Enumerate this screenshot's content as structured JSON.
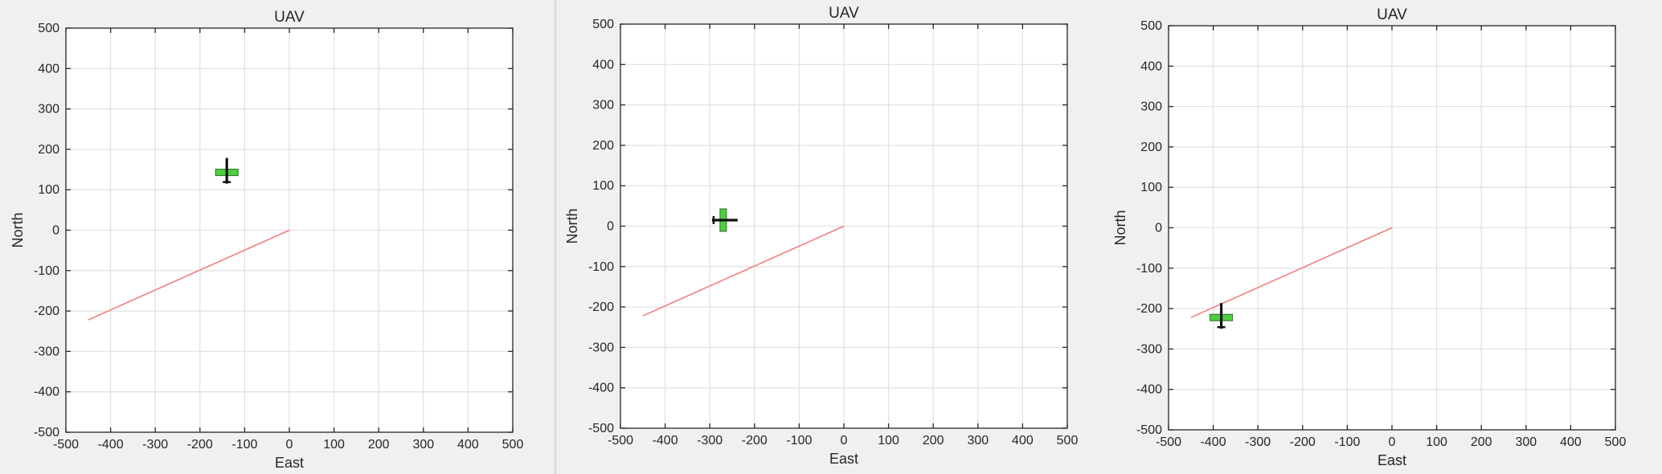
{
  "chart_data": [
    {
      "type": "line",
      "title": "UAV",
      "xlabel": "East",
      "ylabel": "North",
      "xlim": [
        -500,
        500
      ],
      "ylim": [
        -500,
        500
      ],
      "xticks": [
        -500,
        -400,
        -300,
        -200,
        -100,
        0,
        100,
        200,
        300,
        400,
        500
      ],
      "yticks": [
        -500,
        -400,
        -300,
        -200,
        -100,
        0,
        100,
        200,
        300,
        400,
        500
      ],
      "grid": true,
      "series": [
        {
          "x": [
            -450,
            0
          ],
          "y": [
            -222,
            0
          ],
          "color": "#ef7f7f"
        }
      ],
      "uav": {
        "east": -140,
        "north": 143,
        "heading_deg": 90
      }
    },
    {
      "type": "line",
      "title": "UAV",
      "xlabel": "East",
      "ylabel": "North",
      "xlim": [
        -500,
        500
      ],
      "ylim": [
        -500,
        500
      ],
      "xticks": [
        -500,
        -400,
        -300,
        -200,
        -100,
        0,
        100,
        200,
        300,
        400,
        500
      ],
      "yticks": [
        -500,
        -400,
        -300,
        -200,
        -100,
        0,
        100,
        200,
        300,
        400,
        500
      ],
      "grid": true,
      "series": [
        {
          "x": [
            -450,
            0
          ],
          "y": [
            -222,
            0
          ],
          "color": "#ef7f7f"
        }
      ],
      "uav": {
        "east": -270,
        "north": 15,
        "heading_deg": 180
      }
    },
    {
      "type": "line",
      "title": "UAV",
      "xlabel": "East",
      "ylabel": "North",
      "xlim": [
        -500,
        500
      ],
      "ylim": [
        -500,
        500
      ],
      "xticks": [
        -500,
        -400,
        -300,
        -200,
        -100,
        0,
        100,
        200,
        300,
        400,
        500
      ],
      "yticks": [
        -500,
        -400,
        -300,
        -200,
        -100,
        0,
        100,
        200,
        300,
        400,
        500
      ],
      "grid": true,
      "series": [
        {
          "x": [
            -450,
            0
          ],
          "y": [
            -222,
            0
          ],
          "color": "#ef7f7f"
        }
      ],
      "uav": {
        "east": -382,
        "north": -222,
        "heading_deg": 90
      }
    }
  ],
  "colors": {
    "uav_body": "#111111",
    "uav_wing": "#4fcf3f",
    "uav_wing_edge": "#2a6e22"
  }
}
